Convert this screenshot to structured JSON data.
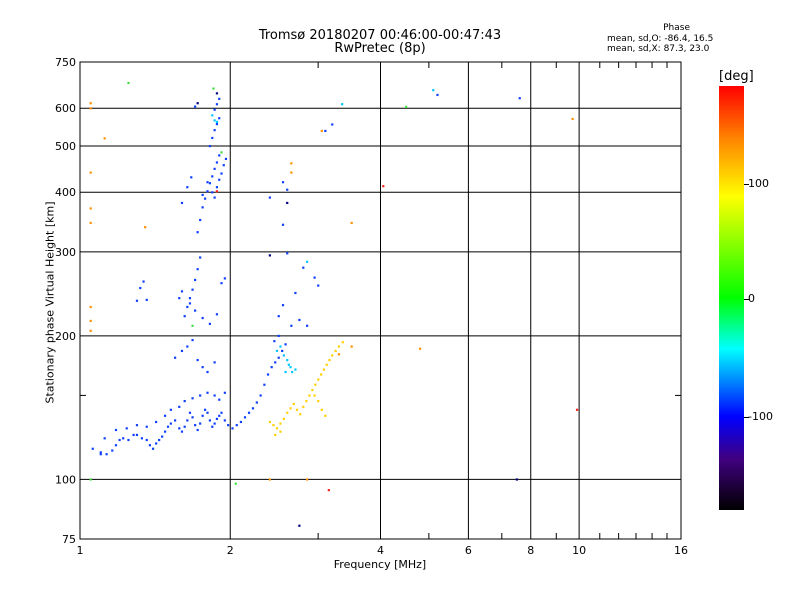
{
  "header": {
    "title": "Tromsø 20180207 00:46:00-00:47:43",
    "subtitle": "RwPretec (8p)",
    "phase_title": "Phase",
    "phase_line1": "mean, sd,O: -86.4, 16.5",
    "phase_line2": "mean, sd,X: 87.3, 23.0"
  },
  "colorbar": {
    "title": "[deg]",
    "ticks": [
      "100",
      "0",
      "-100"
    ]
  },
  "chart_data": {
    "type": "scatter",
    "xlabel": "Frequency [MHz]",
    "ylabel": "Stationary phase Virtual Height [km]",
    "xscale": "log",
    "yscale": "log",
    "xlim": [
      1,
      16
    ],
    "ylim": [
      75,
      750
    ],
    "xticks": [
      1,
      2,
      4,
      6,
      8,
      10,
      16
    ],
    "yticks": [
      75,
      100,
      200,
      300,
      400,
      500,
      600,
      750
    ],
    "minor_xticks": [
      3,
      5,
      7,
      9,
      11,
      12,
      13,
      14,
      15
    ],
    "minor_yticks": [
      150
    ],
    "grid": true,
    "colorbar_range": [
      -180,
      180
    ],
    "series": [
      {
        "color": "#1040ff",
        "points": [
          [
            1.06,
            116
          ],
          [
            1.1,
            114
          ],
          [
            1.13,
            113
          ],
          [
            1.16,
            115
          ],
          [
            1.18,
            118
          ],
          [
            1.2,
            121
          ],
          [
            1.22,
            122
          ],
          [
            1.25,
            121
          ],
          [
            1.28,
            124
          ],
          [
            1.3,
            124
          ],
          [
            1.33,
            122
          ],
          [
            1.36,
            121
          ],
          [
            1.38,
            118
          ],
          [
            1.4,
            116
          ],
          [
            1.42,
            119
          ],
          [
            1.44,
            121
          ],
          [
            1.46,
            123
          ],
          [
            1.48,
            126
          ],
          [
            1.5,
            129
          ],
          [
            1.52,
            131
          ],
          [
            1.55,
            133
          ],
          [
            1.58,
            128
          ],
          [
            1.6,
            126
          ],
          [
            1.62,
            129
          ],
          [
            1.64,
            133
          ],
          [
            1.66,
            138
          ],
          [
            1.68,
            135
          ],
          [
            1.7,
            130
          ],
          [
            1.72,
            127
          ],
          [
            1.74,
            131
          ],
          [
            1.76,
            136
          ],
          [
            1.78,
            140
          ],
          [
            1.8,
            138
          ],
          [
            1.82,
            133
          ],
          [
            1.84,
            129
          ],
          [
            1.86,
            131
          ],
          [
            1.88,
            134
          ],
          [
            1.9,
            136
          ],
          [
            1.92,
            138
          ],
          [
            1.95,
            133
          ],
          [
            1.98,
            130
          ],
          [
            2.02,
            128
          ],
          [
            2.06,
            130
          ],
          [
            2.1,
            132
          ],
          [
            2.14,
            135
          ],
          [
            2.18,
            138
          ],
          [
            2.22,
            141
          ],
          [
            2.26,
            145
          ],
          [
            2.3,
            150
          ],
          [
            2.34,
            158
          ],
          [
            2.38,
            166
          ],
          [
            2.42,
            172
          ],
          [
            2.46,
            176
          ],
          [
            2.5,
            180
          ],
          [
            2.54,
            186
          ],
          [
            2.58,
            192
          ],
          [
            1.12,
            122
          ],
          [
            1.18,
            127
          ],
          [
            1.24,
            128
          ],
          [
            1.3,
            130
          ],
          [
            1.36,
            129
          ],
          [
            1.42,
            132
          ],
          [
            1.48,
            136
          ],
          [
            1.52,
            140
          ],
          [
            1.58,
            142
          ],
          [
            1.62,
            146
          ],
          [
            1.68,
            148
          ],
          [
            1.74,
            150
          ],
          [
            1.8,
            152
          ],
          [
            1.86,
            150
          ],
          [
            1.9,
            147
          ],
          [
            1.95,
            152
          ],
          [
            1.62,
            220
          ],
          [
            1.64,
            230
          ],
          [
            1.66,
            240
          ],
          [
            1.68,
            250
          ],
          [
            1.7,
            262
          ],
          [
            1.72,
            276
          ],
          [
            1.74,
            292
          ],
          [
            1.58,
            240
          ],
          [
            1.6,
            248
          ],
          [
            1.66,
            234
          ],
          [
            1.7,
            226
          ],
          [
            1.76,
            218
          ],
          [
            1.82,
            212
          ],
          [
            1.88,
            222
          ],
          [
            1.92,
            258
          ],
          [
            1.95,
            264
          ],
          [
            1.3,
            237
          ],
          [
            1.32,
            252
          ],
          [
            1.34,
            260
          ],
          [
            1.36,
            238
          ],
          [
            1.55,
            180
          ],
          [
            1.6,
            186
          ],
          [
            1.64,
            190
          ],
          [
            1.68,
            196
          ],
          [
            1.72,
            178
          ],
          [
            1.76,
            172
          ],
          [
            1.8,
            168
          ],
          [
            1.86,
            176
          ],
          [
            1.72,
            330
          ],
          [
            1.74,
            350
          ],
          [
            1.76,
            372
          ],
          [
            1.78,
            388
          ],
          [
            1.8,
            402
          ],
          [
            1.82,
            418
          ],
          [
            1.84,
            432
          ],
          [
            1.86,
            448
          ],
          [
            1.88,
            462
          ],
          [
            1.9,
            478
          ],
          [
            1.76,
            395
          ],
          [
            1.8,
            420
          ],
          [
            1.84,
            400
          ],
          [
            1.86,
            390
          ],
          [
            1.88,
            410
          ],
          [
            1.9,
            425
          ],
          [
            1.92,
            438
          ],
          [
            1.94,
            456
          ],
          [
            1.96,
            470
          ],
          [
            1.82,
            500
          ],
          [
            1.84,
            520
          ],
          [
            1.86,
            540
          ],
          [
            1.88,
            556
          ],
          [
            1.9,
            572
          ],
          [
            1.86,
            596
          ],
          [
            1.88,
            612
          ],
          [
            1.9,
            628
          ],
          [
            1.6,
            380
          ],
          [
            1.64,
            410
          ],
          [
            1.67,
            430
          ],
          [
            2.4,
            390
          ],
          [
            2.55,
            420
          ],
          [
            2.6,
            405
          ],
          [
            2.55,
            342
          ],
          [
            2.6,
            298
          ],
          [
            2.8,
            278
          ],
          [
            2.95,
            265
          ],
          [
            3.0,
            255
          ],
          [
            2.7,
            246
          ],
          [
            2.5,
            220
          ],
          [
            2.55,
            232
          ],
          [
            2.75,
            216
          ],
          [
            2.85,
            210
          ],
          [
            2.65,
            210
          ],
          [
            2.5,
            200
          ],
          [
            2.45,
            195
          ],
          [
            3.2,
            555
          ],
          [
            3.1,
            538
          ],
          [
            7.6,
            630
          ],
          [
            5.2,
            640
          ],
          [
            1.7,
            605
          ],
          [
            1.1,
            113
          ]
        ]
      },
      {
        "color": "#00c8ff",
        "points": [
          [
            2.48,
            186
          ],
          [
            2.52,
            190
          ],
          [
            2.56,
            182
          ],
          [
            2.6,
            178
          ],
          [
            2.62,
            174
          ],
          [
            2.64,
            172
          ],
          [
            2.58,
            168
          ],
          [
            2.66,
            168
          ],
          [
            2.7,
            170
          ],
          [
            2.85,
            286
          ],
          [
            3.35,
            612
          ],
          [
            5.1,
            655
          ],
          [
            1.84,
            580
          ],
          [
            1.86,
            566
          ],
          [
            1.88,
            562
          ]
        ]
      },
      {
        "color": "#ffd000",
        "points": [
          [
            2.4,
            132
          ],
          [
            2.44,
            130
          ],
          [
            2.48,
            128
          ],
          [
            2.52,
            131
          ],
          [
            2.56,
            134
          ],
          [
            2.6,
            138
          ],
          [
            2.64,
            141
          ],
          [
            2.68,
            144
          ],
          [
            2.72,
            140
          ],
          [
            2.76,
            137
          ],
          [
            2.8,
            142
          ],
          [
            2.84,
            146
          ],
          [
            2.88,
            150
          ],
          [
            2.92,
            154
          ],
          [
            2.96,
            158
          ],
          [
            3.0,
            162
          ],
          [
            3.04,
            166
          ],
          [
            3.08,
            170
          ],
          [
            3.12,
            174
          ],
          [
            3.16,
            178
          ],
          [
            3.2,
            182
          ],
          [
            3.25,
            186
          ],
          [
            3.3,
            190
          ],
          [
            3.36,
            194
          ],
          [
            2.95,
            150
          ],
          [
            3.0,
            146
          ],
          [
            3.05,
            140
          ],
          [
            3.1,
            136
          ],
          [
            2.46,
            124
          ],
          [
            2.52,
            126
          ]
        ]
      },
      {
        "color": "#ff9000",
        "points": [
          [
            1.05,
            615
          ],
          [
            1.05,
            600
          ],
          [
            1.05,
            440
          ],
          [
            1.05,
            370
          ],
          [
            1.05,
            345
          ],
          [
            1.05,
            230
          ],
          [
            1.05,
            215
          ],
          [
            1.05,
            205
          ],
          [
            1.35,
            338
          ],
          [
            1.12,
            519
          ],
          [
            2.65,
            460
          ],
          [
            2.65,
            440
          ],
          [
            3.05,
            538
          ],
          [
            3.5,
            345
          ],
          [
            3.5,
            190
          ],
          [
            3.3,
            183
          ],
          [
            4.8,
            188
          ],
          [
            9.7,
            570
          ],
          [
            2.4,
            100
          ],
          [
            2.85,
            100
          ]
        ]
      },
      {
        "color": "#40e040",
        "points": [
          [
            1.25,
            678
          ],
          [
            1.85,
            660
          ],
          [
            1.92,
            485
          ],
          [
            1.68,
            210
          ],
          [
            2.05,
            98
          ],
          [
            1.05,
            100
          ],
          [
            4.5,
            604
          ]
        ]
      },
      {
        "color": "#ff2020",
        "points": [
          [
            4.05,
            412
          ],
          [
            9.9,
            140
          ],
          [
            1.88,
            402
          ],
          [
            3.15,
            95
          ]
        ]
      },
      {
        "color": "#000080",
        "points": [
          [
            2.6,
            380
          ],
          [
            2.4,
            295
          ],
          [
            2.75,
            80
          ],
          [
            7.5,
            100
          ],
          [
            1.72,
            615
          ],
          [
            1.88,
            645
          ]
        ]
      }
    ]
  }
}
